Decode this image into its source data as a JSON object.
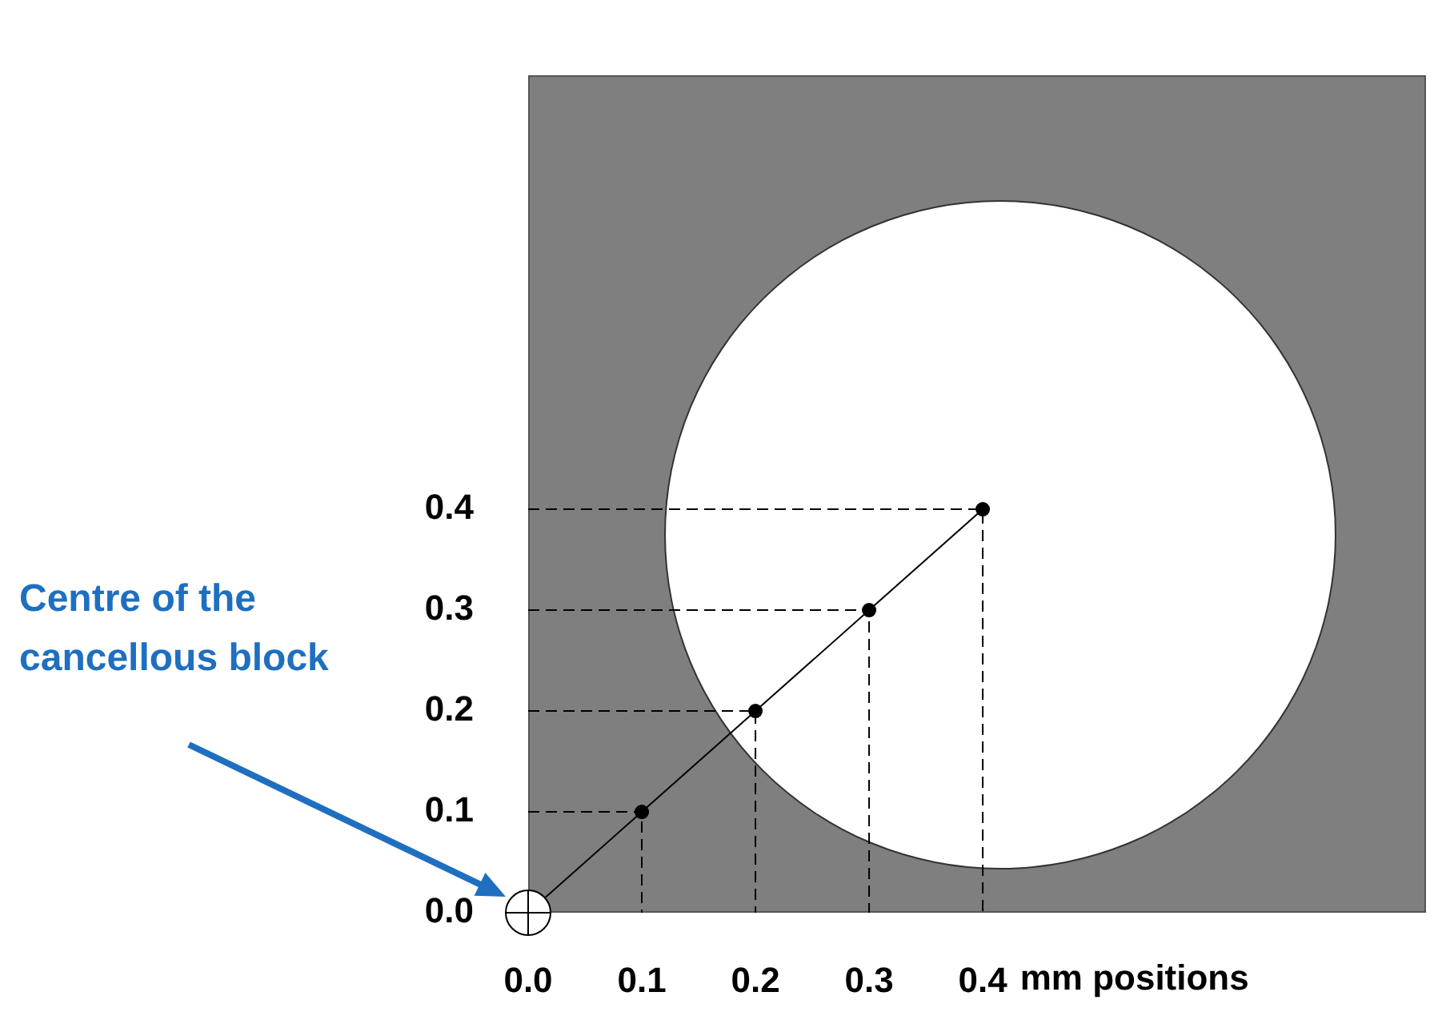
{
  "chart_data": {
    "type": "line",
    "xlabel": "mm positions",
    "x": [
      0,
      0.1,
      0.2,
      0.3,
      0.4
    ],
    "series": [
      {
        "color": "#000000",
        "values": [
          0,
          0.1,
          0.2,
          0.3,
          0.4
        ]
      },
      {
        "color": "#000000",
        "line_style": "dashed",
        "marker": "none",
        "x": [
          0,
          0.1,
          0.1
        ],
        "values": [
          0.1,
          0.1,
          0
        ]
      },
      {
        "color": "#000000",
        "line_style": "dashed",
        "marker": "none",
        "x": [
          0,
          0.2,
          0.2
        ],
        "values": [
          0.2,
          0.2,
          0
        ]
      },
      {
        "color": "#000000",
        "line_style": "dashed",
        "marker": "none",
        "x": [
          0,
          0.3,
          0.3
        ],
        "values": [
          0.3,
          0.3,
          0
        ]
      },
      {
        "color": "#000000",
        "line_style": "dashed",
        "marker": "none",
        "x": [
          0,
          0.4,
          0.4
        ],
        "values": [
          0.4,
          0.4,
          0
        ]
      }
    ],
    "xlim": [
      0,
      0.79
    ],
    "ylim": [
      0,
      0.83
    ],
    "xticks": [
      {
        "value": 0,
        "label": "0.0"
      },
      0.1,
      0.2,
      0.3,
      0.4
    ],
    "yticks": [
      {
        "value": 0,
        "label": "0.0"
      },
      0.1,
      0.2,
      0.3,
      0.4
    ],
    "annotations": [
      "Centre of the cancellous block"
    ],
    "grid": false,
    "legend": false,
    "marker": "circle",
    "line_style": "solid"
  }
}
